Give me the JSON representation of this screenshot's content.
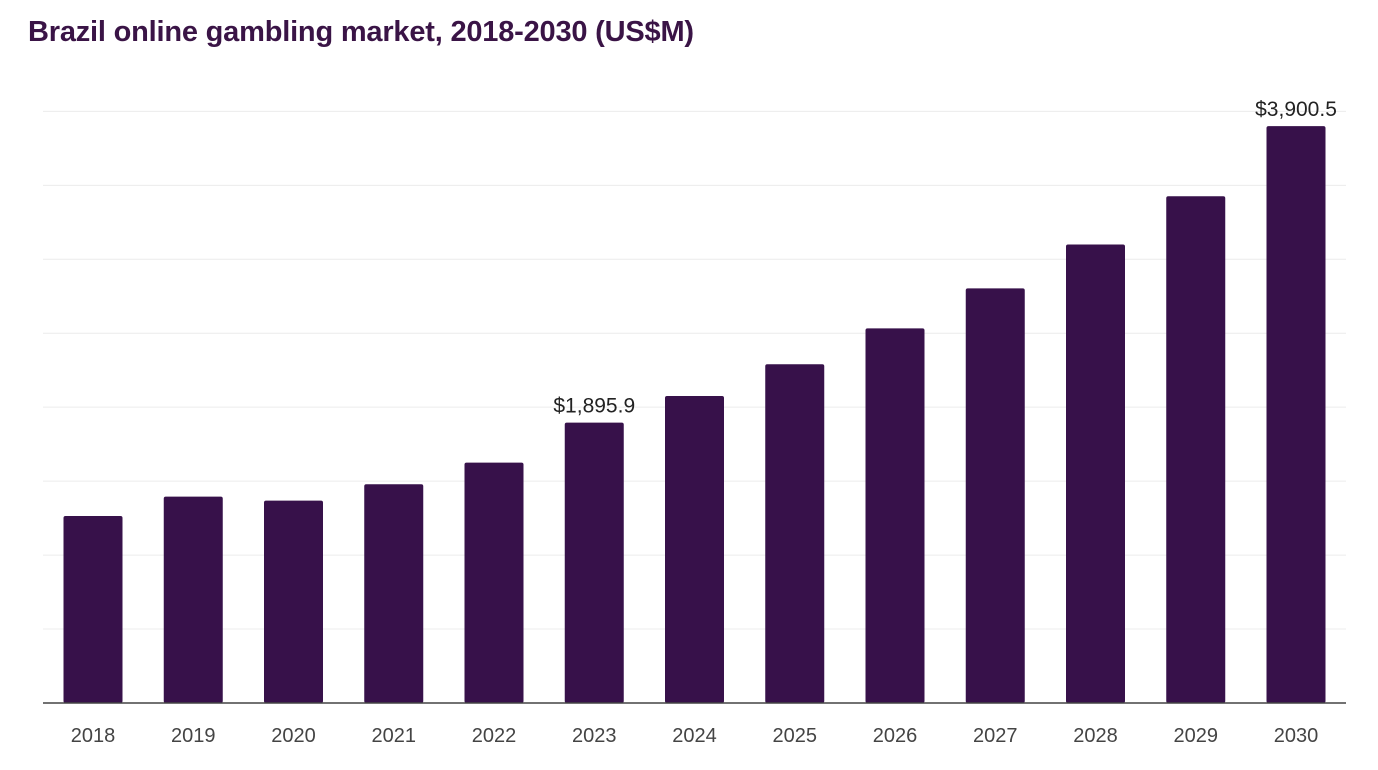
{
  "chart_data": {
    "type": "bar",
    "title": "Brazil online gambling market, 2018-2030 (US$M)",
    "xlabel": "",
    "ylabel": "",
    "categories": [
      "2018",
      "2019",
      "2020",
      "2021",
      "2022",
      "2023",
      "2024",
      "2025",
      "2026",
      "2027",
      "2028",
      "2029",
      "2030"
    ],
    "series": [
      {
        "values": [
          1264,
          1395,
          1368,
          1479,
          1625,
          1895.9,
          2076,
          2290,
          2533,
          2803,
          3100,
          3426,
          3900.5
        ],
        "color": "#37114a"
      }
    ],
    "data_labels": [
      {
        "category": "2023",
        "text": "$1,895.9"
      },
      {
        "category": "2030",
        "text": "$3,900.5"
      }
    ],
    "ylim": [
      0,
      4300
    ],
    "gridlines": true,
    "y_tick_labels_shown": false,
    "legend": "none"
  }
}
